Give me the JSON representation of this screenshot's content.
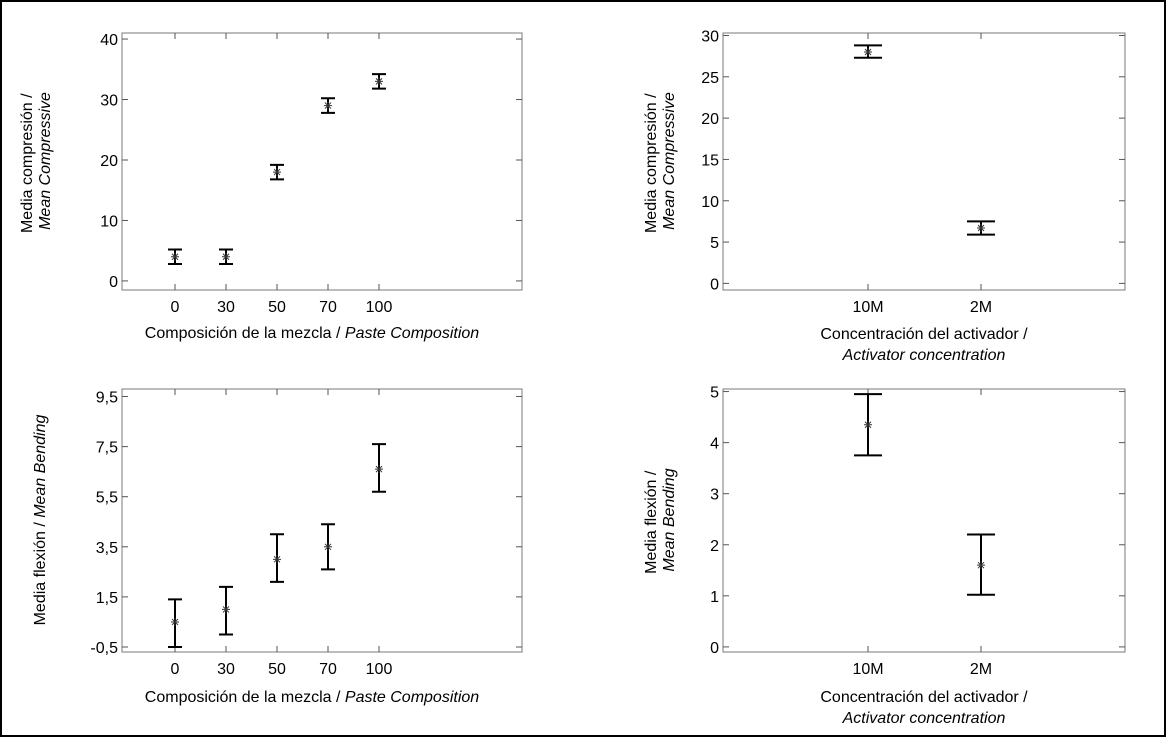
{
  "chart_data": [
    {
      "id": "p1",
      "type": "scatter",
      "subtype": "means-with-error-bars",
      "categories": [
        "0",
        "30",
        "50",
        "70",
        "100"
      ],
      "series": [
        {
          "values": [
            4,
            4,
            18,
            29,
            33
          ],
          "lower": [
            2.8,
            2.8,
            16.8,
            27.8,
            31.8
          ],
          "upper": [
            5.2,
            5.2,
            19.2,
            30.2,
            34.2
          ]
        }
      ],
      "xlabel": "Composición de la mezcla / ",
      "xlabel_italic": "Paste Composition",
      "ylabel": "Media compresión /",
      "ylabel_italic": "Mean Compressive",
      "ylim": [
        -1.5,
        41
      ],
      "yticks": [
        0,
        10,
        20,
        30,
        40
      ],
      "ytick_labels": [
        "0",
        "10",
        "20",
        "30",
        "40"
      ],
      "grid": false
    },
    {
      "id": "p2",
      "type": "scatter",
      "subtype": "means-with-error-bars",
      "categories": [
        "10M",
        "2M"
      ],
      "series": [
        {
          "values": [
            28,
            6.7
          ],
          "lower": [
            27.3,
            5.9
          ],
          "upper": [
            28.8,
            7.5
          ]
        }
      ],
      "xlabel": "Concentración del activador /",
      "xlabel_italic": "Activator concentration",
      "ylabel": "Media compresión /",
      "ylabel_italic": "Mean Compressive",
      "ylim": [
        -0.8,
        30.3
      ],
      "yticks": [
        0,
        5,
        10,
        15,
        20,
        25,
        30
      ],
      "ytick_labels": [
        "0",
        "5",
        "10",
        "15",
        "20",
        "25",
        "30"
      ],
      "grid": false
    },
    {
      "id": "p3",
      "type": "scatter",
      "subtype": "means-with-error-bars",
      "categories": [
        "0",
        "30",
        "50",
        "70",
        "100"
      ],
      "series": [
        {
          "values": [
            0.5,
            1,
            3,
            3.5,
            6.6
          ],
          "lower": [
            -0.5,
            0,
            2.1,
            2.6,
            5.7
          ],
          "upper": [
            1.4,
            1.9,
            4,
            4.4,
            7.6
          ]
        }
      ],
      "xlabel": "Composición de la mezcla / ",
      "xlabel_italic": "Paste Composition",
      "ylabel": "Media flexión / ",
      "ylabel_italic": "Mean Bending",
      "ylim": [
        -0.7,
        9.8
      ],
      "yticks": [
        -0.5,
        1.5,
        3.5,
        5.5,
        7.5,
        9.5
      ],
      "ytick_labels": [
        "-0,5",
        "1,5",
        "3,5",
        "5,5",
        "7,5",
        "9,5"
      ],
      "grid": false
    },
    {
      "id": "p4",
      "type": "scatter",
      "subtype": "means-with-error-bars",
      "categories": [
        "10M",
        "2M"
      ],
      "series": [
        {
          "values": [
            4.35,
            1.6
          ],
          "lower": [
            3.75,
            1.02
          ],
          "upper": [
            4.95,
            2.2
          ]
        }
      ],
      "xlabel": "Concentración del activador /",
      "xlabel_italic": "Activator concentration",
      "ylabel": "Media flexión /",
      "ylabel_italic": "Mean Bending",
      "ylim": [
        -0.1,
        5.05
      ],
      "yticks": [
        0,
        1,
        2,
        3,
        4,
        5
      ],
      "ytick_labels": [
        "0",
        "1",
        "2",
        "3",
        "4",
        "5"
      ],
      "grid": false
    }
  ]
}
